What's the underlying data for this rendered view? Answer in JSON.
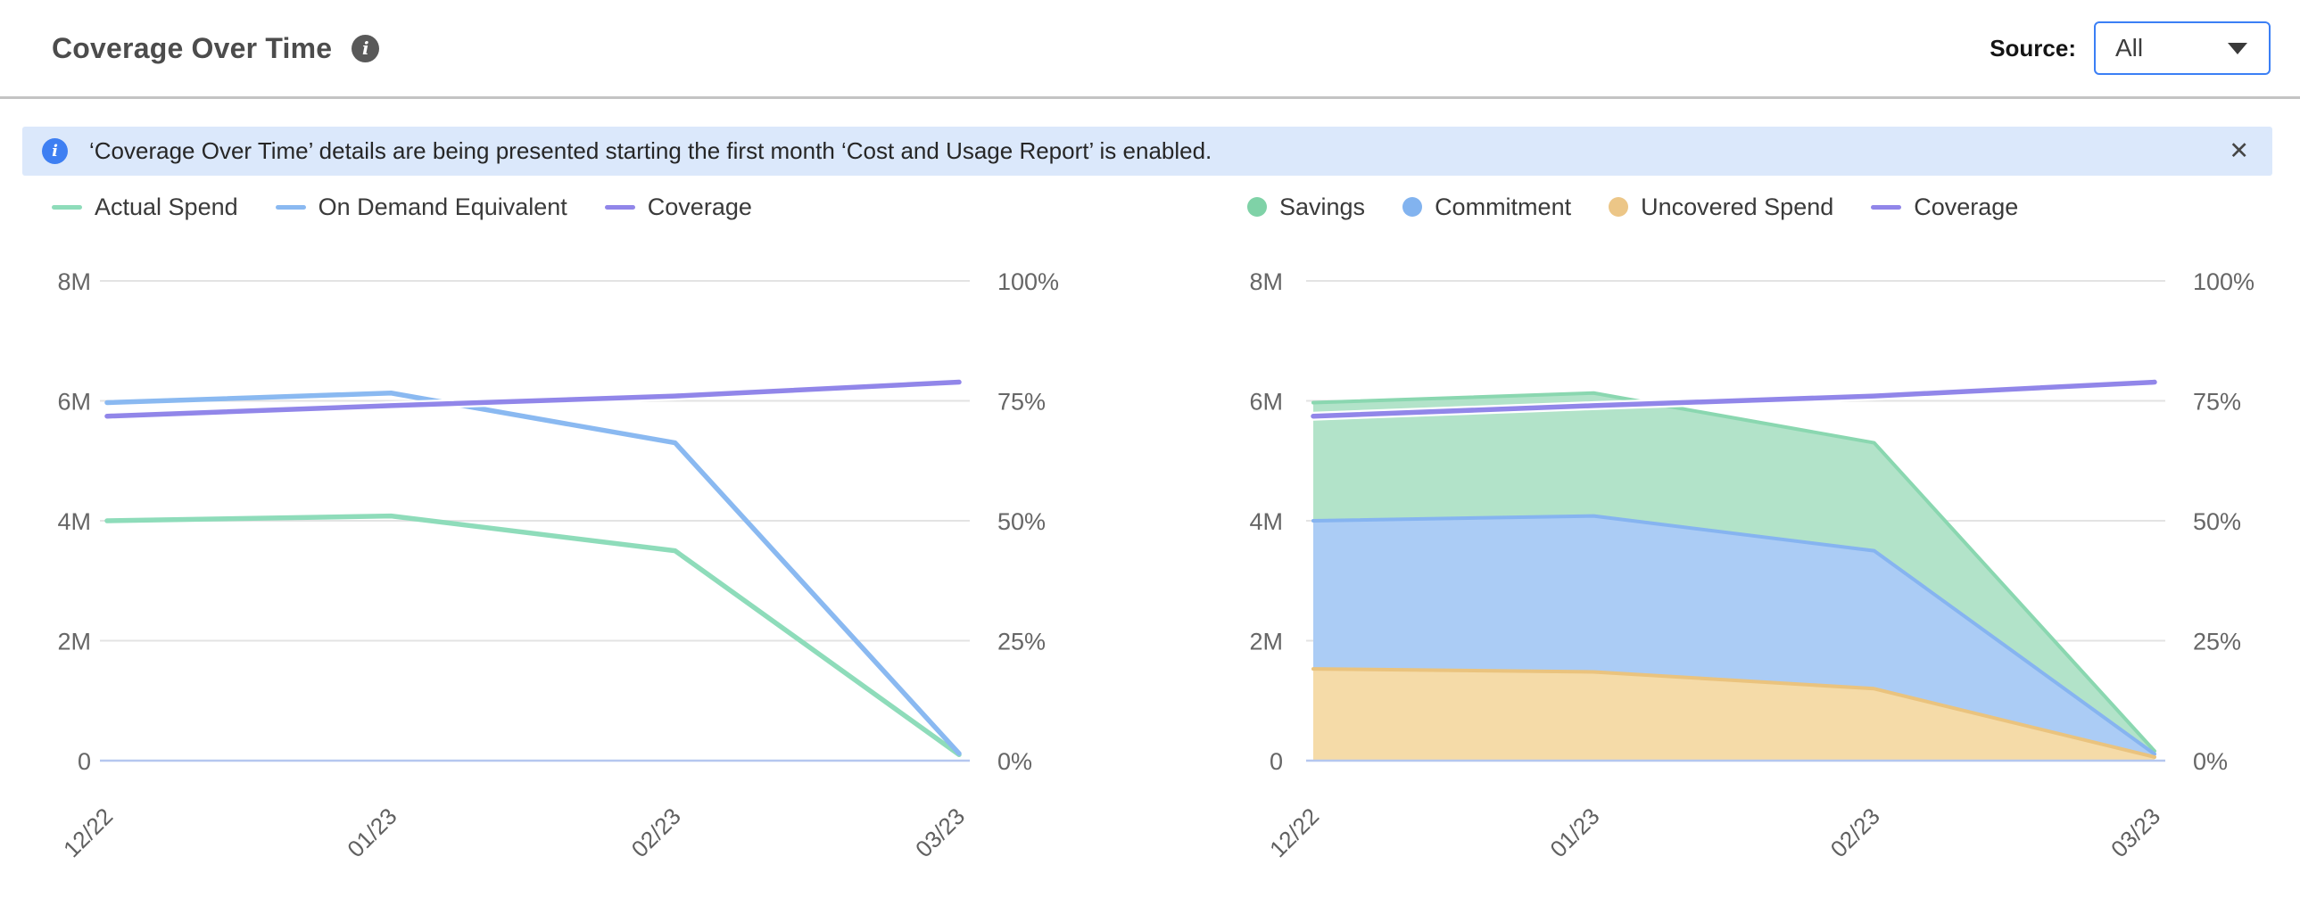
{
  "header": {
    "title": "Coverage Over Time",
    "info_icon": "i",
    "source_label": "Source:",
    "source_value": "All"
  },
  "banner": {
    "icon": "i",
    "message": "‘Coverage Over Time’ details are being presented starting the first month ‘Cost and Usage Report’ is enabled.",
    "close_icon": "✕"
  },
  "colors": {
    "accent_blue": "#3b7ff5",
    "banner_bg": "#dbe8fb",
    "banner_icon_blue": "#3e7ff2",
    "grid_line": "#e3e3e3",
    "axis_baseline": "#b5c7ef",
    "axis_text": "#666666",
    "green_line": "#8edcba",
    "blue_line": "#8ab9f1",
    "purple_line": "#9186e9",
    "green_fill": "#b2e3c9",
    "blue_fill": "#abccf5",
    "orange_fill": "#f5dba8"
  },
  "chart_data": [
    {
      "id": "spend_lines",
      "type": "line",
      "title": "",
      "categories": [
        "12/22",
        "01/23",
        "02/23",
        "03/23"
      ],
      "y_left": {
        "max": 8000000,
        "ticks": [
          "8M",
          "6M",
          "4M",
          "2M",
          "0"
        ]
      },
      "y_right": {
        "max": 100,
        "ticks": [
          "100%",
          "75%",
          "50%",
          "25%",
          "0%"
        ]
      },
      "grid": true,
      "legend_position": "top-left",
      "series": [
        {
          "name": "Actual Spend",
          "role": "line",
          "axis": "left",
          "marker": "dash",
          "color": "#8edcba",
          "values": [
            4000000,
            4080000,
            3500000,
            100000
          ]
        },
        {
          "name": "On Demand Equivalent",
          "role": "line",
          "axis": "left",
          "marker": "dash",
          "color": "#8ab9f1",
          "values": [
            5970000,
            6130000,
            5300000,
            120000
          ]
        },
        {
          "name": "Coverage",
          "role": "line",
          "axis": "right",
          "marker": "dash",
          "color": "#9186e9",
          "halo": "#ffffff",
          "values": [
            71.8,
            74.0,
            76.0,
            78.9
          ]
        }
      ]
    },
    {
      "id": "coverage_stack",
      "type": "area",
      "stacked": true,
      "title": "",
      "categories": [
        "12/22",
        "01/23",
        "02/23",
        "03/23"
      ],
      "y_left": {
        "max": 8000000,
        "ticks": [
          "8M",
          "6M",
          "4M",
          "2M",
          "0"
        ]
      },
      "y_right": {
        "max": 100,
        "ticks": [
          "100%",
          "75%",
          "50%",
          "25%",
          "0%"
        ]
      },
      "grid": true,
      "legend_position": "top-left",
      "series": [
        {
          "name": "Savings",
          "role": "area",
          "stack_level": 3,
          "axis": "left",
          "marker": "circle",
          "color": "#7fd2a7",
          "fill": "#b2e3c9",
          "edge": "#8ad7b0",
          "values": [
            1970000,
            2050000,
            1800000,
            50000
          ]
        },
        {
          "name": "Commitment",
          "role": "area",
          "stack_level": 2,
          "axis": "left",
          "marker": "circle",
          "color": "#82b3ef",
          "fill": "#abccf5",
          "edge": "#86b4f0",
          "values": [
            2470000,
            2600000,
            2300000,
            50000
          ]
        },
        {
          "name": "Uncovered Spend",
          "role": "area",
          "stack_level": 1,
          "axis": "left",
          "marker": "circle",
          "color": "#ecc687",
          "fill": "#f5dba8",
          "edge": "#eac37e",
          "values": [
            1530000,
            1480000,
            1200000,
            60000
          ]
        },
        {
          "name": "Coverage",
          "role": "line",
          "axis": "right",
          "marker": "dash",
          "color": "#9186e9",
          "halo": "#ffffff",
          "values": [
            71.8,
            74.0,
            76.0,
            78.9
          ]
        }
      ]
    }
  ]
}
